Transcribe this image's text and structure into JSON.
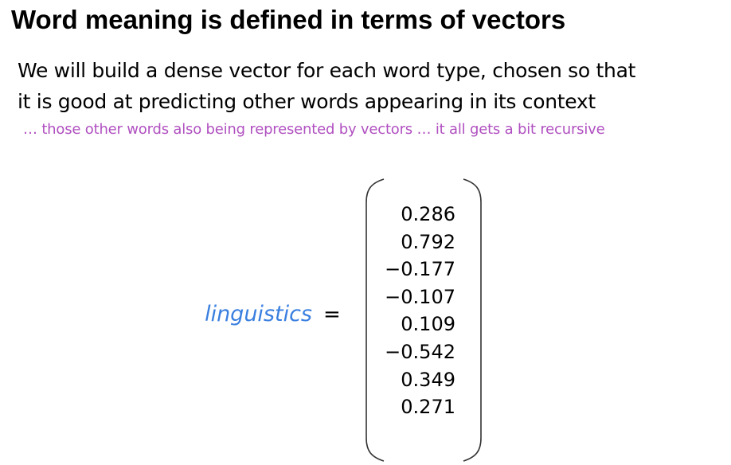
{
  "slide": {
    "title": "Word meaning is defined in terms of vectors",
    "body_lines": [
      "We will build a dense vector for each word type, chosen so that",
      "it is good at predicting other words appearing in its context"
    ],
    "note": "… those other words also being represented by vectors … it all gets a bit recursive",
    "word": "linguistics",
    "equals": "=",
    "vector_values": [
      "0.286",
      "0.792",
      "−0.177",
      "−0.107",
      "0.109",
      "−0.542",
      "0.349",
      "0.271"
    ]
  },
  "colors": {
    "title": "#000000",
    "body": "#000000",
    "note": "#b050c0",
    "word": "#3a7fe0",
    "bracket": "#333333"
  }
}
